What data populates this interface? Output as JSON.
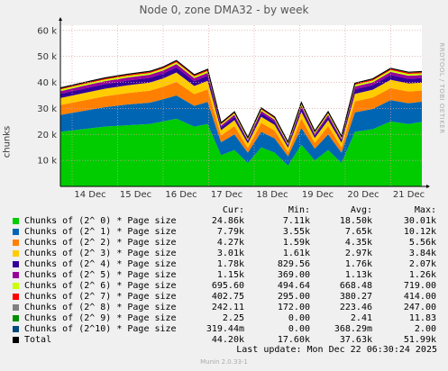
{
  "title": "Node 0, zone DMA32 - by week",
  "side_label": "RRDTOOL / TOBI OETIKER",
  "footer": "Munin 2.0.33-1",
  "last_update": "Last update:  Mon Dec 22 06:30:24 2025",
  "legend_headers": {
    "cur": "Cur:",
    "min": "Min:",
    "avg": "Avg:",
    "max": "Max:"
  },
  "chart_data": {
    "type": "area",
    "stacked": true,
    "title": "Node 0, zone DMA32 - by week",
    "ylabel": "chunks",
    "ylim": [
      0,
      62000
    ],
    "yticks": [
      10000,
      20000,
      30000,
      40000,
      50000,
      60000
    ],
    "ytick_labels": [
      "10 k",
      "20 k",
      "30 k",
      "40 k",
      "50 k",
      "60 k"
    ],
    "xtick_labels": [
      "14 Dec",
      "15 Dec",
      "16 Dec",
      "17 Dec",
      "18 Dec",
      "19 Dec",
      "20 Dec",
      "21 Dec"
    ],
    "grid": true,
    "background": "#ffffff",
    "x": [
      0,
      0.5,
      1,
      1.5,
      2,
      2.3,
      2.6,
      3,
      3.3,
      3.6,
      3.9,
      4.2,
      4.5,
      4.8,
      5.1,
      5.4,
      5.7,
      6,
      6.3,
      6.6,
      7,
      7.4,
      7.8,
      8.1
    ],
    "series": [
      {
        "name": "Chunks of (2^ 0) * Page size",
        "color": "#00cc00",
        "cur": "24.86k",
        "min": "7.11k",
        "avg": "18.50k",
        "max": "30.01k",
        "values": [
          21000,
          22000,
          23000,
          23500,
          24000,
          25000,
          26000,
          23000,
          24000,
          12000,
          14000,
          9000,
          15000,
          13000,
          8000,
          16000,
          10000,
          14000,
          9000,
          21000,
          22000,
          25000,
          24000,
          24800
        ]
      },
      {
        "name": "Chunks of (2^ 1) * Page size",
        "color": "#0066b3",
        "cur": "7.79k",
        "min": "3.55k",
        "avg": "7.65k",
        "max": "10.12k",
        "values": [
          6500,
          7000,
          7500,
          8000,
          8200,
          8500,
          9000,
          8000,
          8500,
          5000,
          6000,
          4000,
          6000,
          5500,
          3600,
          6500,
          4500,
          6000,
          4000,
          7500,
          7800,
          8200,
          8000,
          7800
        ]
      },
      {
        "name": "Chunks of (2^ 2) * Page size",
        "color": "#ff8000",
        "cur": "4.27k",
        "min": "1.59k",
        "avg": "4.35k",
        "max": "5.56k",
        "values": [
          3800,
          4000,
          4200,
          4400,
          4600,
          4800,
          5200,
          4500,
          4800,
          2600,
          3200,
          1800,
          3400,
          3000,
          1600,
          3600,
          2200,
          3200,
          2000,
          4200,
          4400,
          4600,
          4500,
          4270
        ]
      },
      {
        "name": "Chunks of (2^ 3) * Page size",
        "color": "#ffcc00",
        "cur": "3.01k",
        "min": "1.61k",
        "avg": "2.97k",
        "max": "3.84k",
        "values": [
          2700,
          2800,
          2900,
          3000,
          3100,
          3200,
          3600,
          3100,
          3300,
          2000,
          2300,
          1700,
          2400,
          2200,
          1650,
          2600,
          1900,
          2300,
          1800,
          2900,
          3000,
          3200,
          3100,
          3010
        ]
      },
      {
        "name": "Chunks of (2^ 4) * Page size",
        "color": "#330099",
        "cur": "1.78k",
        "min": "829.56",
        "avg": "1.76k",
        "max": "2.07k",
        "values": [
          1600,
          1700,
          1750,
          1800,
          1850,
          1900,
          2000,
          1850,
          1900,
          1100,
          1300,
          900,
          1400,
          1200,
          850,
          1500,
          1000,
          1300,
          950,
          1700,
          1750,
          1850,
          1800,
          1780
        ]
      },
      {
        "name": "Chunks of (2^ 5) * Page size",
        "color": "#990099",
        "cur": "1.15k",
        "min": "369.00",
        "avg": "1.13k",
        "max": "1.26k",
        "values": [
          1050,
          1100,
          1120,
          1150,
          1180,
          1200,
          1250,
          1180,
          1200,
          700,
          800,
          400,
          850,
          750,
          380,
          900,
          600,
          800,
          500,
          1100,
          1120,
          1200,
          1180,
          1150
        ]
      },
      {
        "name": "Chunks of (2^ 6) * Page size",
        "color": "#ccff00",
        "cur": "695.60",
        "min": "494.64",
        "avg": "668.48",
        "max": "719.00",
        "values": [
          650,
          660,
          670,
          680,
          690,
          700,
          715,
          690,
          700,
          520,
          560,
          500,
          580,
          560,
          500,
          600,
          540,
          580,
          520,
          680,
          690,
          705,
          700,
          696
        ]
      },
      {
        "name": "Chunks of (2^ 7) * Page size",
        "color": "#ff0000",
        "cur": "402.75",
        "min": "295.00",
        "avg": "380.27",
        "max": "414.00",
        "values": [
          370,
          375,
          380,
          385,
          390,
          395,
          410,
          390,
          395,
          310,
          330,
          300,
          340,
          330,
          298,
          350,
          320,
          340,
          305,
          385,
          390,
          400,
          398,
          403
        ]
      },
      {
        "name": "Chunks of (2^ 8) * Page size",
        "color": "#808080",
        "cur": "242.11",
        "min": "172.00",
        "avg": "223.46",
        "max": "247.00",
        "values": [
          215,
          218,
          220,
          224,
          228,
          230,
          245,
          228,
          232,
          180,
          195,
          175,
          200,
          190,
          174,
          205,
          185,
          198,
          178,
          226,
          230,
          238,
          236,
          242
        ]
      },
      {
        "name": "Chunks of (2^ 9) * Page size",
        "color": "#008f00",
        "cur": "2.25",
        "min": "0.00",
        "avg": "2.41",
        "max": "11.83",
        "values": [
          2,
          2,
          3,
          2,
          3,
          2,
          4,
          3,
          2,
          1,
          2,
          0,
          3,
          2,
          0,
          3,
          1,
          2,
          0,
          3,
          2,
          3,
          2,
          2
        ]
      },
      {
        "name": "Chunks of (2^10) * Page size",
        "color": "#00487d",
        "cur": "319.44m",
        "min": "0.00",
        "avg": "368.29m",
        "max": "2.00",
        "values": [
          0.3,
          0.4,
          0.3,
          0.4,
          0.3,
          0.4,
          0.5,
          0.4,
          0.3,
          0.2,
          0.3,
          0,
          0.4,
          0.3,
          0,
          0.4,
          0.2,
          0.3,
          0,
          0.4,
          0.3,
          0.4,
          0.3,
          0.3
        ]
      }
    ],
    "total": {
      "name": "Total",
      "color": "#000000",
      "cur": "44.20k",
      "min": "17.60k",
      "avg": "37.63k",
      "max": "51.99k"
    }
  }
}
